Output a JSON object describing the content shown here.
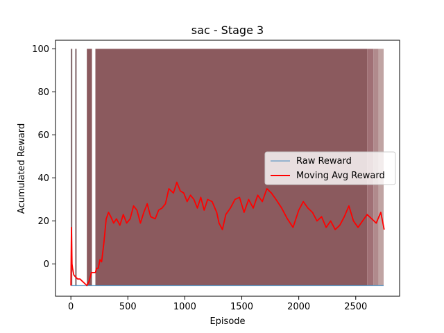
{
  "chart_data": {
    "type": "line",
    "title": "sac - Stage 3",
    "xlabel": "Episode",
    "ylabel": "Acumulated Reward",
    "xlim": [
      -135,
      2885
    ],
    "ylim": [
      -15,
      104
    ],
    "xticks": [
      0,
      500,
      1000,
      1500,
      2000,
      2500
    ],
    "yticks": [
      0,
      20,
      40,
      60,
      80,
      100
    ],
    "grid": false,
    "legend_position": "center-right",
    "colors": {
      "raw": "#1f77b4",
      "avg": "#ff0000",
      "band": "#8b5a5e"
    },
    "series": [
      {
        "name": "Raw Reward",
        "style": "dense oscillation between -10 and 100",
        "min": -10,
        "max": 100,
        "segments": [
          {
            "x0": 0,
            "x1": 8,
            "kind": "spike"
          },
          {
            "x0": 38,
            "x1": 48,
            "kind": "spike"
          },
          {
            "x0": 140,
            "x1": 185,
            "kind": "band"
          },
          {
            "x0": 215,
            "x1": 2600,
            "kind": "band"
          },
          {
            "x0": 2600,
            "x1": 2655,
            "kind": "band-faded"
          },
          {
            "x0": 2655,
            "x1": 2700,
            "kind": "band-faded"
          },
          {
            "x0": 2700,
            "x1": 2745,
            "kind": "band-faded"
          }
        ]
      },
      {
        "name": "Moving Avg Reward",
        "x": [
          0,
          5,
          10,
          15,
          25,
          40,
          60,
          80,
          100,
          120,
          140,
          150,
          160,
          170,
          180,
          200,
          215,
          225,
          240,
          255,
          270,
          290,
          310,
          330,
          350,
          375,
          400,
          430,
          460,
          490,
          520,
          550,
          580,
          610,
          640,
          670,
          700,
          740,
          770,
          800,
          830,
          860,
          900,
          930,
          960,
          990,
          1020,
          1050,
          1080,
          1110,
          1140,
          1170,
          1200,
          1240,
          1280,
          1300,
          1330,
          1360,
          1400,
          1440,
          1480,
          1520,
          1560,
          1600,
          1640,
          1680,
          1720,
          1760,
          1800,
          1850,
          1900,
          1950,
          2000,
          2040,
          2080,
          2120,
          2160,
          2200,
          2240,
          2280,
          2320,
          2360,
          2400,
          2440,
          2480,
          2520,
          2560,
          2600,
          2640,
          2680,
          2720,
          2750
        ],
        "y": [
          -10,
          17,
          0,
          -2,
          -5,
          -6,
          -7,
          -7,
          -8,
          -9,
          -10,
          -9,
          -8,
          -6,
          -4,
          -4,
          -4,
          -2,
          -2,
          2,
          1,
          10,
          21,
          24,
          22,
          19,
          21,
          18,
          23,
          19,
          21,
          27,
          25,
          19,
          24,
          28,
          22,
          21,
          25,
          26,
          28,
          35,
          33,
          38,
          34,
          33,
          29,
          32,
          30,
          26,
          31,
          25,
          30,
          29,
          24,
          19,
          16,
          23,
          26,
          30,
          31,
          24,
          30,
          26,
          32,
          29,
          35,
          33,
          30,
          26,
          21,
          17,
          25,
          29,
          26,
          24,
          20,
          22,
          17,
          20,
          16,
          18,
          22,
          27,
          20,
          17,
          20,
          23,
          21,
          19,
          24,
          16
        ]
      }
    ]
  }
}
